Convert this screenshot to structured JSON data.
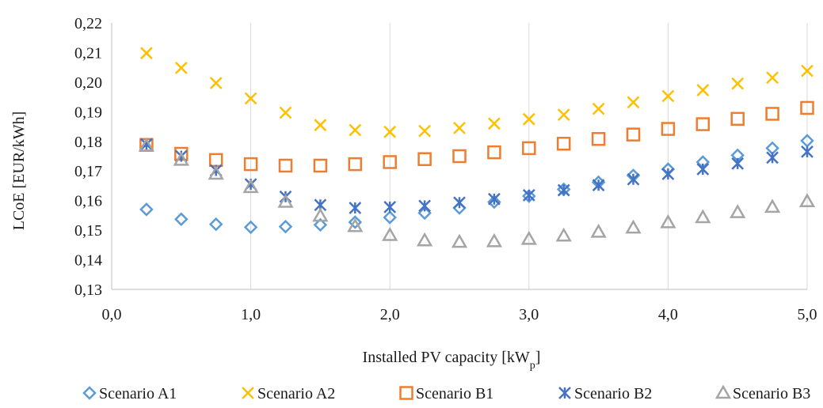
{
  "chart_data": {
    "type": "scatter",
    "xlabel": "Installed PV capacity [kW",
    "xlabel_sub": "p",
    "xlabel_end": "]",
    "ylabel": "LCoE [EUR/kWh]",
    "xlim": [
      0,
      5
    ],
    "ylim": [
      0.13,
      0.22
    ],
    "x_ticks": [
      0,
      1,
      2,
      3,
      4,
      5
    ],
    "x_tick_labels": [
      "0,0",
      "1,0",
      "2,0",
      "3,0",
      "4,0",
      "5,0"
    ],
    "y_ticks": [
      0.13,
      0.14,
      0.15,
      0.16,
      0.17,
      0.18,
      0.19,
      0.2,
      0.21,
      0.22
    ],
    "y_tick_labels": [
      "0,13",
      "0,14",
      "0,15",
      "0,16",
      "0,17",
      "0,18",
      "0,19",
      "0,20",
      "0,21",
      "0,22"
    ],
    "grid": "vertical",
    "legend_position": "bottom",
    "x": [
      0.25,
      0.5,
      0.75,
      1.0,
      1.25,
      1.5,
      1.75,
      2.0,
      2.25,
      2.5,
      2.75,
      3.0,
      3.25,
      3.5,
      3.75,
      4.0,
      4.25,
      4.5,
      4.75,
      5.0
    ],
    "series": [
      {
        "name": "Scenario A1",
        "marker": "diamond",
        "color": "#5b9bd5",
        "values": [
          0.157,
          0.1537,
          0.152,
          0.151,
          0.1512,
          0.1518,
          0.1527,
          0.1543,
          0.1558,
          0.1575,
          0.1595,
          0.1615,
          0.1638,
          0.1662,
          0.1685,
          0.1706,
          0.173,
          0.1753,
          0.1777,
          0.1802
        ]
      },
      {
        "name": "Scenario A2",
        "marker": "x",
        "color": "#ffc000",
        "values": [
          0.2098,
          0.2048,
          0.1997,
          0.1945,
          0.1897,
          0.1855,
          0.1838,
          0.1832,
          0.1835,
          0.1845,
          0.186,
          0.1875,
          0.189,
          0.191,
          0.1932,
          0.1953,
          0.1973,
          0.1995,
          0.2015,
          0.2038
        ]
      },
      {
        "name": "Scenario B1",
        "marker": "square",
        "color": "#ed7d31",
        "values": [
          0.1788,
          0.1758,
          0.1737,
          0.1723,
          0.1718,
          0.1718,
          0.1723,
          0.173,
          0.174,
          0.175,
          0.1763,
          0.1777,
          0.1792,
          0.1808,
          0.1823,
          0.1842,
          0.1858,
          0.1876,
          0.1893,
          0.1913
        ]
      },
      {
        "name": "Scenario B2",
        "marker": "asterisk",
        "color": "#4472c4",
        "values": [
          0.179,
          0.175,
          0.1702,
          0.1655,
          0.1613,
          0.1585,
          0.1575,
          0.1578,
          0.1582,
          0.1593,
          0.1605,
          0.1618,
          0.1635,
          0.1652,
          0.1672,
          0.169,
          0.1706,
          0.1725,
          0.1745,
          0.1765
        ]
      },
      {
        "name": "Scenario B3",
        "marker": "triangle",
        "color": "#a5a5a5",
        "values": [
          0.1785,
          0.1737,
          0.169,
          0.1645,
          0.1595,
          0.1548,
          0.1513,
          0.1483,
          0.1465,
          0.146,
          0.1462,
          0.147,
          0.1481,
          0.1494,
          0.1508,
          0.1526,
          0.1543,
          0.156,
          0.1578,
          0.1597
        ]
      }
    ]
  }
}
